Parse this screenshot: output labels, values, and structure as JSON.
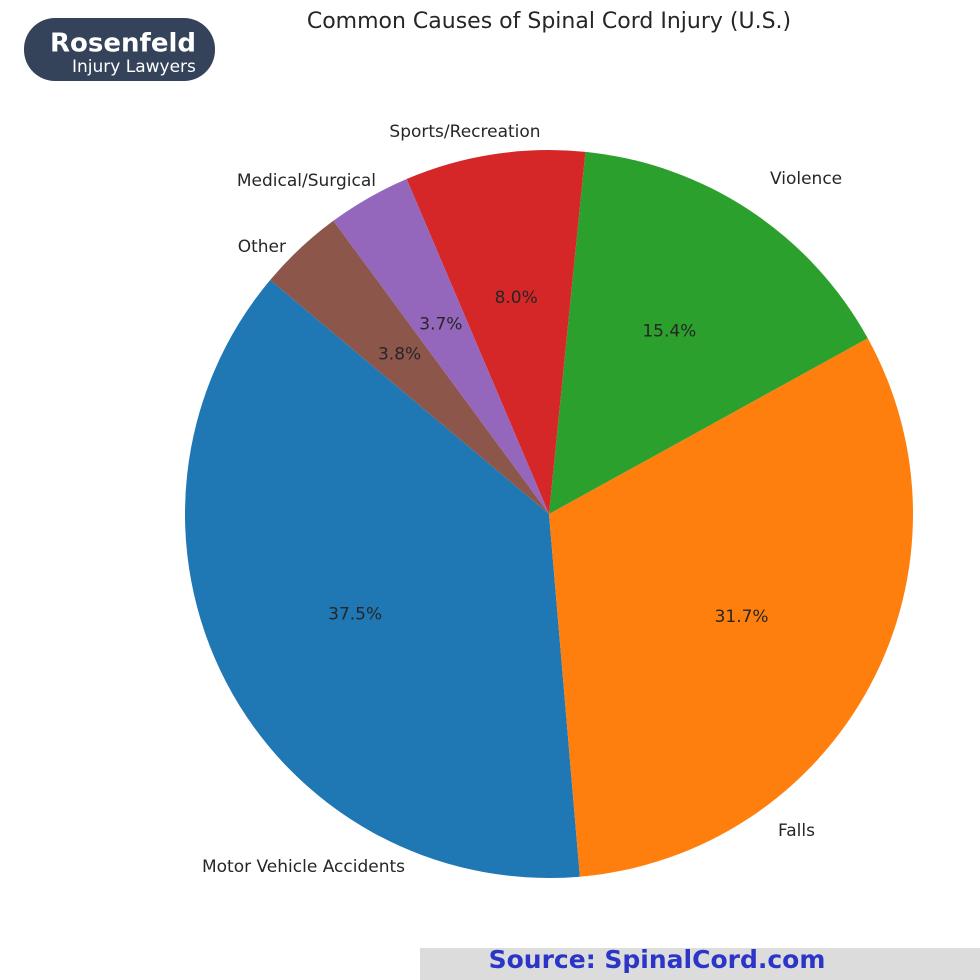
{
  "chart_data": {
    "type": "pie",
    "title": "Common Causes of Spinal Cord Injury (U.S.)",
    "categories": [
      "Motor Vehicle Accidents",
      "Falls",
      "Violence",
      "Sports/Recreation",
      "Medical/Surgical",
      "Other"
    ],
    "values": [
      37.5,
      31.7,
      15.4,
      8.0,
      3.7,
      3.8
    ],
    "value_labels": [
      "37.5%",
      "31.7%",
      "15.4%",
      "8.0%",
      "3.7%",
      "3.8%"
    ],
    "colors": [
      "#1f77b4",
      "#ff7f0e",
      "#2ca02c",
      "#d62728",
      "#9467bd",
      "#8c564b"
    ],
    "start_angle": 140,
    "counterclockwise": true
  },
  "logo": {
    "name": "Rosenfeld",
    "tagline": "Injury Lawyers"
  },
  "source": "Source:  SpinalCord.com"
}
